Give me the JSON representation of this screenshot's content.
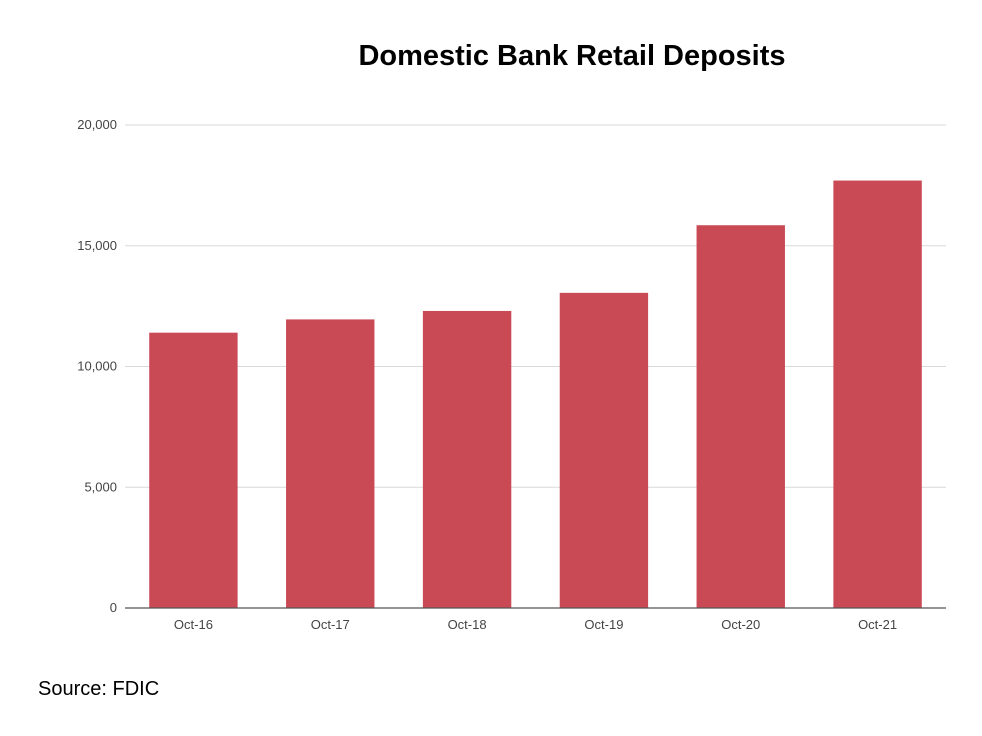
{
  "chart_data": {
    "type": "bar",
    "title": "Domestic Bank Retail Deposits",
    "categories": [
      "Oct-16",
      "Oct-17",
      "Oct-18",
      "Oct-19",
      "Oct-20",
      "Oct-21"
    ],
    "values": [
      11400,
      11950,
      12300,
      13050,
      15850,
      17700
    ],
    "ylim": [
      0,
      20000
    ],
    "yticks": [
      0,
      5000,
      10000,
      15000,
      20000
    ],
    "ytick_labels": [
      "0",
      "5,000",
      "10,000",
      "15,000",
      "20,000"
    ],
    "xlabel": "",
    "ylabel": "",
    "grid": true,
    "bar_color": "#c94a55"
  },
  "source": "Source: FDIC"
}
